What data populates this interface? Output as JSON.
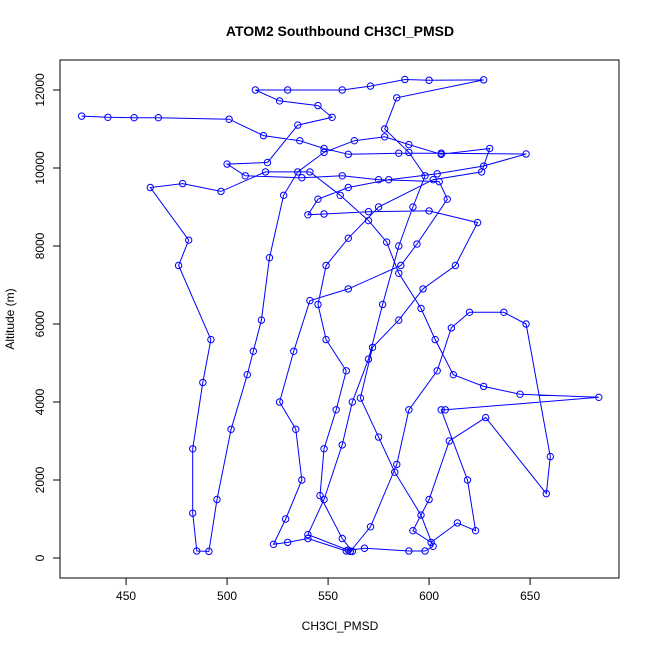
{
  "chart_data": {
    "type": "line",
    "title": "ATOM2 Southbound CH3Cl_PMSD",
    "x_label": "CH3Cl_PMSD",
    "y_label": "Altitude (m)",
    "color": "#0000ff",
    "marker": "circle",
    "x": [
      428,
      441,
      454,
      466,
      501,
      518,
      536,
      548,
      560,
      585,
      606,
      648,
      627,
      604,
      580,
      560,
      545,
      540,
      548,
      570,
      600,
      624,
      613,
      597,
      585,
      572,
      566,
      575,
      583,
      596,
      602,
      598,
      590,
      568,
      560,
      540,
      548,
      557,
      562,
      570,
      577,
      585,
      592,
      598,
      590,
      578,
      584,
      627,
      600,
      588,
      571,
      557,
      530,
      514,
      526,
      545,
      552,
      535,
      520,
      500,
      509,
      537,
      557,
      575,
      605,
      609,
      594,
      586,
      560,
      541,
      533,
      526,
      534,
      537,
      529,
      523,
      530,
      540,
      559,
      561,
      571,
      584,
      590,
      604,
      611,
      620,
      637,
      648,
      660,
      658,
      628,
      610,
      600,
      592,
      601,
      614,
      623,
      619,
      606,
      608,
      684,
      645,
      627,
      612,
      603,
      596,
      585,
      579,
      570,
      556,
      541,
      519,
      497,
      478,
      462,
      481,
      476,
      492,
      488,
      483,
      483,
      485,
      491,
      495,
      502,
      510,
      513,
      517,
      521,
      528,
      535,
      548,
      563,
      578,
      590,
      606,
      630,
      626,
      602,
      575,
      560,
      549,
      545,
      549,
      559,
      554,
      548,
      546,
      557,
      562
    ],
    "values": [
      11330,
      11300,
      11290,
      11290,
      11250,
      10830,
      10700,
      10500,
      10350,
      10380,
      10380,
      10360,
      10050,
      9850,
      9700,
      9500,
      9200,
      8800,
      8820,
      8880,
      8900,
      8600,
      7500,
      6900,
      6100,
      5400,
      4100,
      3100,
      2200,
      1100,
      300,
      180,
      180,
      250,
      200,
      600,
      1500,
      2900,
      4000,
      5100,
      6500,
      8000,
      9000,
      9800,
      10400,
      11000,
      11800,
      12260,
      12250,
      12270,
      12100,
      12000,
      12000,
      12000,
      11720,
      11600,
      11300,
      11100,
      10140,
      10100,
      9800,
      9750,
      9800,
      9700,
      9650,
      9200,
      8050,
      7500,
      6900,
      6600,
      5300,
      4000,
      3300,
      2000,
      1000,
      350,
      400,
      500,
      180,
      170,
      800,
      2400,
      3800,
      4800,
      5900,
      6300,
      6300,
      6000,
      2600,
      1650,
      3600,
      3000,
      1500,
      700,
      400,
      900,
      700,
      2000,
      3800,
      3800,
      4120,
      4200,
      4400,
      4700,
      5600,
      6400,
      7300,
      8100,
      8650,
      9300,
      9900,
      9900,
      9400,
      9600,
      9500,
      8150,
      7500,
      5600,
      4500,
      2800,
      1150,
      180,
      170,
      1500,
      3300,
      4700,
      5300,
      6100,
      7700,
      9300,
      9900,
      10400,
      10700,
      10800,
      10600,
      10350,
      10500,
      9900,
      9700,
      9000,
      8200,
      7500,
      6500,
      5600,
      4800,
      3800,
      2800,
      1600,
      500,
      170
    ],
    "xlim": [
      417.3,
      694
    ],
    "ylim": [
      -513,
      12769
    ],
    "xticks": [
      450,
      500,
      550,
      600,
      650
    ],
    "yticks": [
      0,
      2000,
      4000,
      6000,
      8000,
      10000,
      12000
    ],
    "grid": false
  }
}
